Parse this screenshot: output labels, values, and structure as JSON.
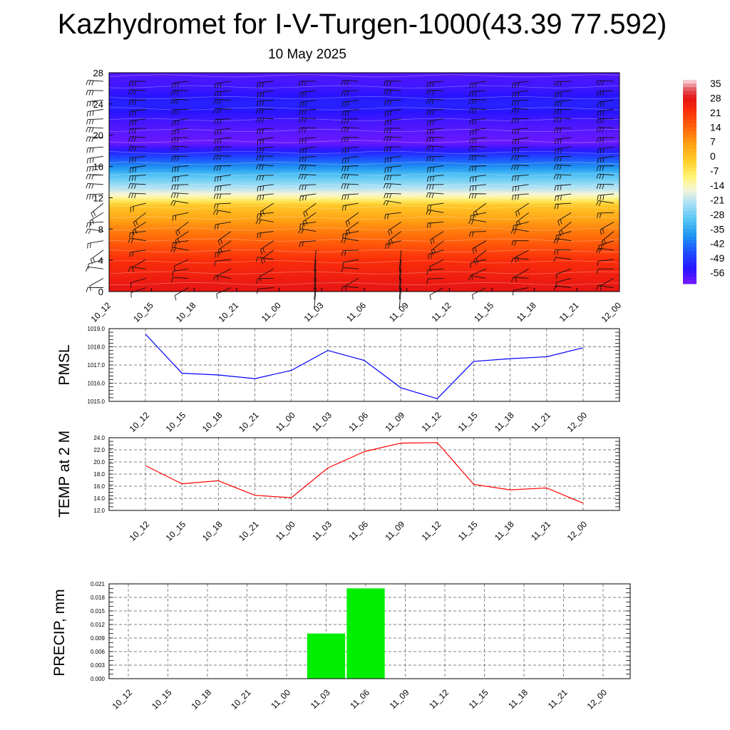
{
  "title": "Kazhydromet for I-V-Turgen-1000(43.39 77.592)",
  "date": "10 May 2025",
  "colors": {
    "pmsl_line": "#0000ff",
    "temp_line": "#ff0000",
    "precip_bar": "#00ee00"
  },
  "chart_data": [
    {
      "type": "heatmap",
      "name": "vertical-profile",
      "x_categories": [
        "10_12",
        "10_15",
        "10_18",
        "10_21",
        "11_00",
        "11_03",
        "11_06",
        "11_09",
        "11_12",
        "11_15",
        "11_18",
        "11_21",
        "12_00"
      ],
      "y_ticks": [
        "0",
        "4",
        "8",
        "12",
        "16",
        "20",
        "24",
        "28"
      ],
      "ylim": [
        0,
        28
      ],
      "colorbar_labels": [
        "35",
        "28",
        "21",
        "14",
        "7",
        "0",
        "-7",
        "-14",
        "-21",
        "-28",
        "-35",
        "-42",
        "-49",
        "-56"
      ],
      "colorbar_range": [
        -60,
        38
      ],
      "temperature_by_level": [
        [
          0,
          30
        ],
        [
          4,
          24
        ],
        [
          8,
          12
        ],
        [
          11,
          1
        ],
        [
          12,
          -10
        ],
        [
          13,
          -18
        ],
        [
          15,
          -30
        ],
        [
          17,
          -44
        ],
        [
          19,
          -58
        ],
        [
          21,
          -56
        ],
        [
          24,
          -50
        ],
        [
          26,
          -54
        ],
        [
          28,
          -56
        ]
      ],
      "wind_barbs": true
    },
    {
      "type": "line",
      "name": "PMSL",
      "ylabel": "PMSL",
      "categories": [
        "10_12",
        "10_15",
        "10_18",
        "10_21",
        "11_00",
        "11_03",
        "11_06",
        "11_09",
        "11_12",
        "11_15",
        "11_18",
        "11_21",
        "12_00"
      ],
      "values": [
        1018.7,
        1016.55,
        1016.45,
        1016.25,
        1016.7,
        1017.8,
        1017.25,
        1015.75,
        1015.15,
        1017.2,
        1017.35,
        1017.45,
        1017.95
      ],
      "ylim": [
        1015.0,
        1019.0
      ],
      "y_ticks": [
        "1015.0",
        "1016.0",
        "1017.0",
        "1018.0",
        "1019.0"
      ],
      "grid": true
    },
    {
      "type": "line",
      "name": "TEMP",
      "ylabel": "TEMP at 2 M",
      "categories": [
        "10_12",
        "10_15",
        "10_18",
        "10_21",
        "11_00",
        "11_03",
        "11_06",
        "11_09",
        "11_12",
        "11_15",
        "11_18",
        "11_21",
        "12_00"
      ],
      "values": [
        19.4,
        16.4,
        16.9,
        14.5,
        14.1,
        19.0,
        21.7,
        23.1,
        23.2,
        16.3,
        15.4,
        15.7,
        13.2
      ],
      "ylim": [
        12.0,
        24.0
      ],
      "y_ticks": [
        "12.0",
        "14.0",
        "16.0",
        "18.0",
        "20.0",
        "22.0",
        "24.0"
      ],
      "grid": true
    },
    {
      "type": "bar",
      "name": "PRECIP",
      "ylabel": "PRECIP, mm",
      "categories": [
        "10_12",
        "10_15",
        "10_18",
        "10_21",
        "11_00",
        "11_03",
        "11_06",
        "11_09",
        "11_12",
        "11_15",
        "11_18",
        "11_21",
        "12_00"
      ],
      "values": [
        0,
        0,
        0,
        0,
        0,
        0.01,
        0.02,
        0,
        0,
        0,
        0,
        0,
        0
      ],
      "ylim": [
        0,
        0.021
      ],
      "y_ticks": [
        "0.000",
        "0.003",
        "0.006",
        "0.009",
        "0.012",
        "0.015",
        "0.018",
        "0.021"
      ],
      "grid": true
    }
  ]
}
